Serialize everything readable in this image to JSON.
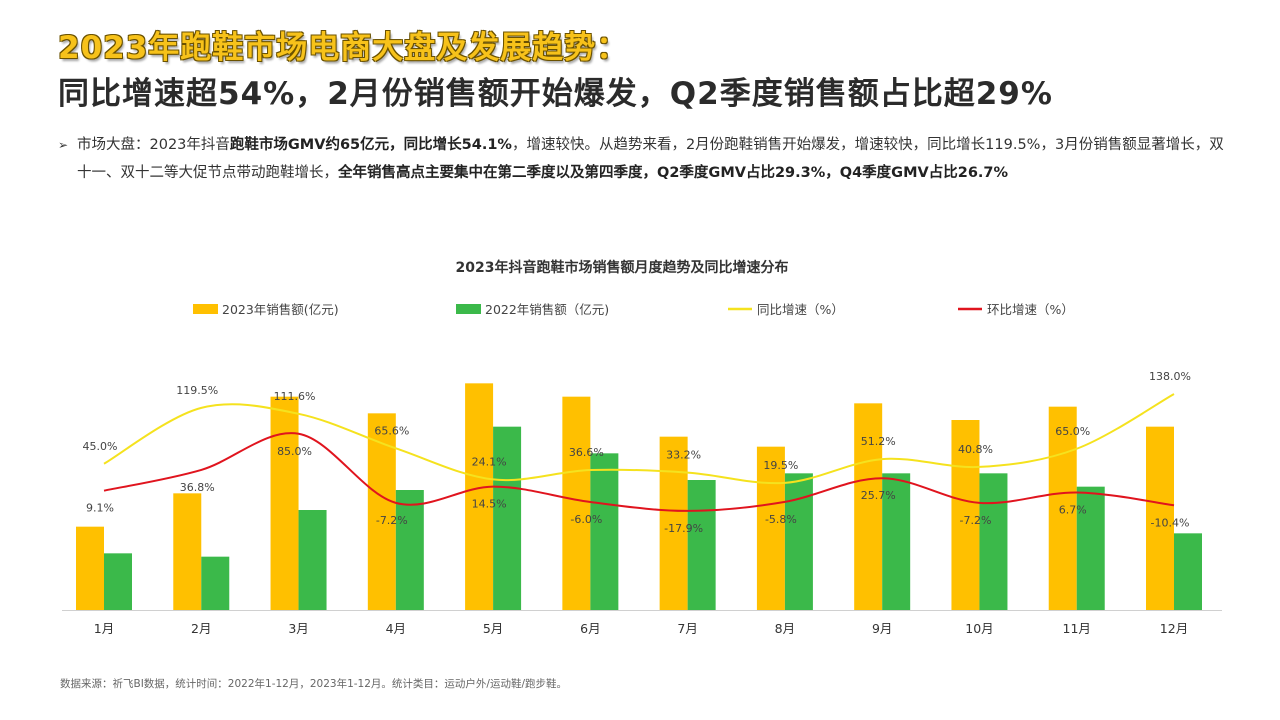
{
  "header": {
    "title_line1": "2023年跑鞋市场电商大盘及发展趋势：",
    "title_line2": "同比增速超54%，2月份销售额开始爆发，Q2季度销售额占比超29%"
  },
  "summary": {
    "marker": "➢",
    "segments": [
      {
        "text": "市场大盘：2023年抖音",
        "bold": false
      },
      {
        "text": "跑鞋市场GMV约65亿元，同比增长54.1%",
        "bold": true
      },
      {
        "text": "，增速较快。从趋势来看，2月份跑鞋销售开始爆发，增速较快，同比增长119.5%，3月份销售额显著增长，双十一、双十二等大促节点带动跑鞋增长，",
        "bold": false
      },
      {
        "text": "全年销售高点主要集中在第二季度以及第四季度，Q2季度GMV占比29.3%，Q4季度GMV占比26.7%",
        "bold": true
      }
    ]
  },
  "chart_data": {
    "type": "bar+line",
    "title": "2023年抖音跑鞋市场销售额月度趋势及同比增速分布",
    "categories": [
      "1月",
      "2月",
      "3月",
      "4月",
      "5月",
      "6月",
      "7月",
      "8月",
      "9月",
      "10月",
      "11月",
      "12月"
    ],
    "legend_placement": "top",
    "grid": false,
    "series": [
      {
        "name": "2023年销售额(亿元)",
        "type": "bar",
        "axis": "primary",
        "color": "#FFC000",
        "values": [
          2.5,
          3.5,
          6.4,
          5.9,
          6.8,
          6.4,
          5.2,
          4.9,
          6.2,
          5.7,
          6.1,
          5.5
        ]
      },
      {
        "name": "2022年销售额（亿元)",
        "type": "bar",
        "axis": "primary",
        "color": "#3BB94A",
        "values": [
          1.7,
          1.6,
          3.0,
          3.6,
          5.5,
          4.7,
          3.9,
          4.1,
          4.1,
          4.1,
          3.7,
          2.3
        ]
      },
      {
        "name": "同比增速（%）",
        "type": "line",
        "axis": "secondary",
        "color": "#F5E21E",
        "values": [
          45.0,
          119.5,
          111.6,
          65.6,
          24.1,
          36.6,
          33.2,
          19.5,
          51.2,
          40.8,
          65.0,
          138.0
        ],
        "labels": [
          "45.0%",
          "119.5%",
          "111.6%",
          "65.6%",
          "24.1%",
          "36.6%",
          "33.2%",
          "19.5%",
          "51.2%",
          "40.8%",
          "65.0%",
          "138.0%"
        ]
      },
      {
        "name": "环比增速（%）",
        "type": "line",
        "axis": "secondary",
        "color": "#E0141E",
        "values": [
          9.1,
          36.8,
          85.0,
          -7.2,
          14.5,
          -6.0,
          -17.9,
          -5.8,
          25.7,
          -7.2,
          6.7,
          -10.4
        ],
        "labels": [
          "9.1%",
          "36.8%",
          "85.0%",
          "-7.2%",
          "14.5%",
          "-6.0%",
          "-17.9%",
          "-5.8%",
          "25.7%",
          "-7.2%",
          "6.7%",
          "-10.4%"
        ]
      }
    ],
    "primary_ylim": [
      0,
      7.2
    ],
    "secondary_ylim": [
      -150,
      170
    ]
  },
  "footer": {
    "source": "数据来源：祈飞BI数据，统计时间：2022年1-12月，2023年1-12月。统计类目：运动户外/运动鞋/跑步鞋。"
  }
}
